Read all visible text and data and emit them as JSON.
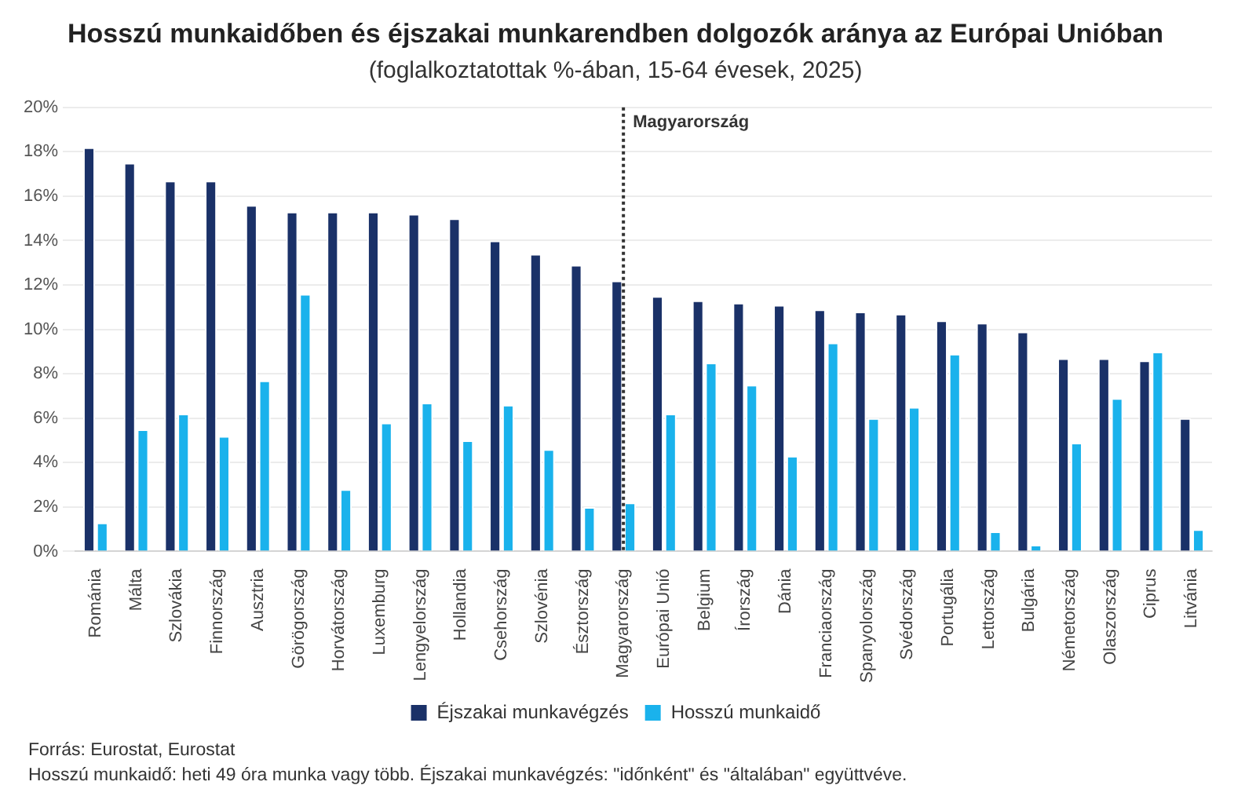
{
  "chart_data": {
    "type": "bar",
    "title": "Hosszú munkaidőben és éjszakai munkarendben dolgozók aránya az Európai Unióban",
    "subtitle": "(foglalkoztatottak %-ában, 15-64 évesek, 2025)",
    "categories": [
      "Románia",
      "Málta",
      "Szlovákia",
      "Finnország",
      "Ausztria",
      "Görögország",
      "Horvátország",
      "Luxemburg",
      "Lengyelország",
      "Hollandia",
      "Csehország",
      "Szlovénia",
      "Észtország",
      "Magyarország",
      "Európai Unió",
      "Belgium",
      "Írország",
      "Dánia",
      "Franciaország",
      "Spanyolország",
      "Svédország",
      "Portugália",
      "Lettország",
      "Bulgária",
      "Németország",
      "Olaszország",
      "Ciprus",
      "Litvánia"
    ],
    "series": [
      {
        "name": "Éjszakai munkavégzés",
        "color": "#1a3168",
        "values": [
          18.2,
          17.5,
          16.7,
          16.7,
          15.6,
          15.3,
          15.3,
          15.3,
          15.2,
          15.0,
          14.0,
          13.4,
          12.9,
          12.2,
          11.5,
          11.3,
          11.2,
          11.1,
          10.9,
          10.8,
          10.7,
          10.4,
          10.3,
          9.9,
          8.7,
          8.7,
          8.6,
          6.0
        ]
      },
      {
        "name": "Hosszú munkaidő",
        "color": "#1ab2ec",
        "values": [
          1.3,
          5.5,
          6.2,
          5.2,
          7.7,
          11.6,
          2.8,
          5.8,
          6.7,
          5.0,
          6.6,
          4.6,
          2.0,
          2.2,
          6.2,
          8.5,
          7.5,
          4.3,
          9.4,
          6.0,
          6.5,
          8.9,
          0.9,
          0.3,
          4.9,
          6.9,
          9.0,
          1.0
        ]
      }
    ],
    "ylim": [
      0,
      20
    ],
    "yticks": [
      {
        "value": 0,
        "label": "0%"
      },
      {
        "value": 2,
        "label": "2%"
      },
      {
        "value": 4,
        "label": "4%"
      },
      {
        "value": 6,
        "label": "6%"
      },
      {
        "value": 8,
        "label": "8%"
      },
      {
        "value": 10,
        "label": "10%"
      },
      {
        "value": 12,
        "label": "12%"
      },
      {
        "value": 14,
        "label": "14%"
      },
      {
        "value": 16,
        "label": "16%"
      },
      {
        "value": 18,
        "label": "18%"
      },
      {
        "value": 20,
        "label": "20%"
      }
    ],
    "grid": "y",
    "legend": "bottom",
    "ref_lines": [
      {
        "axis": "x",
        "value": "Magyarország",
        "label": "Magyarország",
        "color": "#333333",
        "line_style": "dotted"
      }
    ],
    "annotations": [
      "Forrás: Eurostat, Eurostat",
      "Hosszú munkaidő: heti 49 óra munka vagy több. Éjszakai munkavégzés: \"időnként\" és \"általában\" együttvéve."
    ]
  }
}
